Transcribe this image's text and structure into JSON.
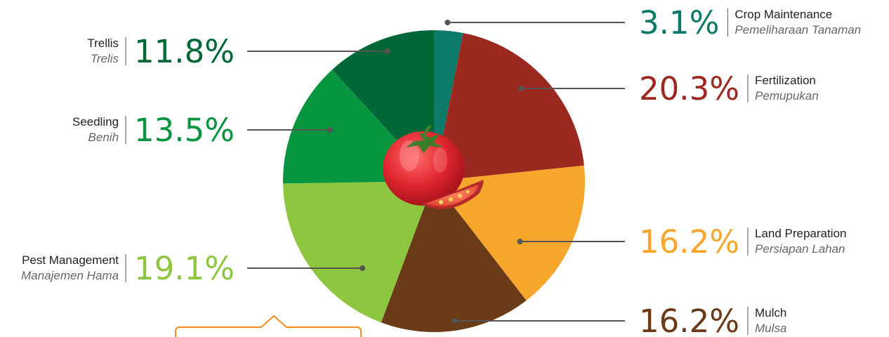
{
  "chart_data": {
    "type": "pie",
    "slices": [
      {
        "name": "Crop Maintenance",
        "name_id": "Pemeliharaan Tanaman",
        "value": 3.1,
        "label": "3.1%",
        "color": "#0b7a68"
      },
      {
        "name": "Fertilization",
        "name_id": "Pemupukan",
        "value": 20.3,
        "label": "20.3%",
        "color": "#9b2920"
      },
      {
        "name": "Land Preparation",
        "name_id": "Persiapan Lahan",
        "value": 16.2,
        "label": "16.2%",
        "color": "#f7a62c"
      },
      {
        "name": "Mulch",
        "name_id": "Mulsa",
        "value": 16.2,
        "label": "16.2%",
        "color": "#6b3a16"
      },
      {
        "name": "Pest Management",
        "name_id": "Manajemen Hama",
        "value": 19.1,
        "label": "19.1%",
        "color": "#8dc63f"
      },
      {
        "name": "Seedling",
        "name_id": "Benih",
        "value": 13.5,
        "label": "13.5%",
        "color": "#07963f"
      },
      {
        "name": "Trellis",
        "name_id": "Trelis",
        "value": 11.8,
        "label": "11.8%",
        "color": "#006837"
      }
    ],
    "start_angle": "12 o'clock",
    "direction": "clockwise",
    "center_decoration": "tomato"
  }
}
